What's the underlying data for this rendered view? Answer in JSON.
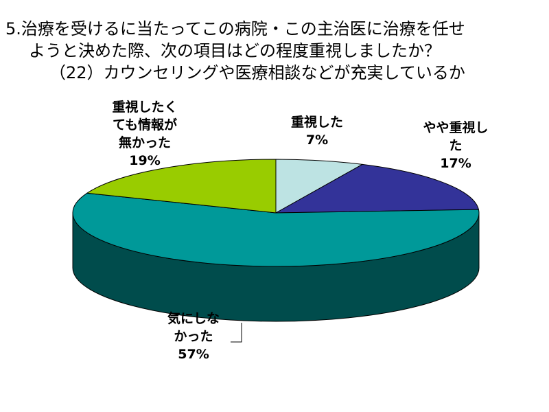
{
  "title": {
    "line1": "5.治療を受けるに当たってこの病院・この主治医に治療を任せ",
    "line2": "ようと決めた際、次の項目はどの程度重視しましたか？",
    "line3": "（22）カウンセリングや医療相談などが充実しているか"
  },
  "chart_data": {
    "type": "pie",
    "style": "3d",
    "title": "5.治療を受けるに当たってこの病院・この主治医に治療を任せようと決めた際、次の項目はどの程度重視しましたか？（22）カウンセリングや医療相談などが充実しているか",
    "slices": [
      {
        "label": "重視した",
        "value": 7,
        "display": "7%",
        "label_lines": [
          "重視した"
        ],
        "color": "#bde3e3",
        "side_color": "#6f9a9a"
      },
      {
        "label": "やや重視した",
        "value": 17,
        "display": "17%",
        "label_lines": [
          "やや重視し",
          "た"
        ],
        "color": "#333399",
        "side_color": "#1c1c5c"
      },
      {
        "label": "気にしなかった",
        "value": 57,
        "display": "57%",
        "label_lines": [
          "気にしな",
          "かった"
        ],
        "color": "#009999",
        "side_color": "#004c4c"
      },
      {
        "label": "重視したくても情報が無かった",
        "value": 19,
        "display": "19%",
        "label_lines": [
          "重視したく",
          "ても情報が",
          "無かった"
        ],
        "color": "#99cc00",
        "side_color": "#5c7a00"
      }
    ],
    "legend": "none"
  }
}
